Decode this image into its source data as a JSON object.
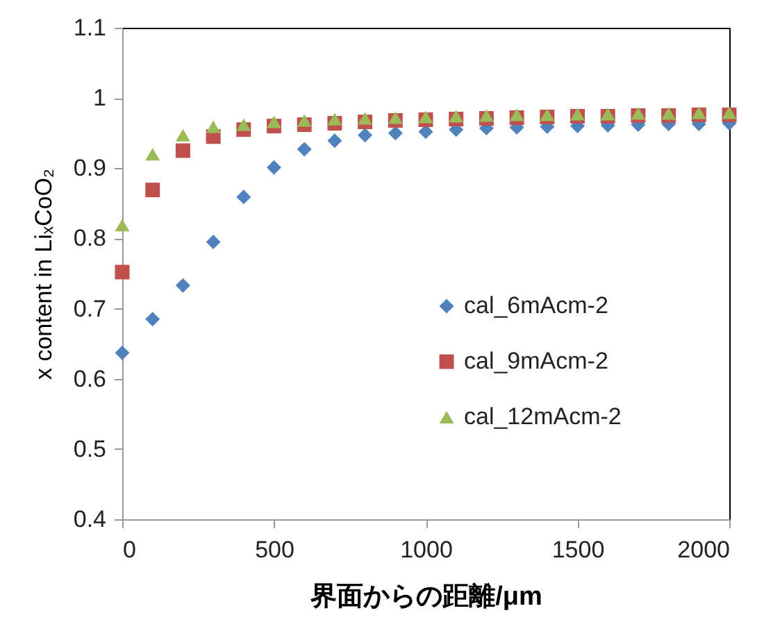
{
  "chart_data": {
    "type": "scatter",
    "xlabel": "界面からの距離/μm",
    "ylabel": "x content in LiₓCoO₂",
    "x": [
      0,
      100,
      200,
      300,
      400,
      500,
      600,
      700,
      800,
      900,
      1000,
      1100,
      1200,
      1300,
      1400,
      1500,
      1600,
      1700,
      1800,
      1900,
      2000
    ],
    "series": [
      {
        "name": "cal_6mAcm-2",
        "color": "#4f81bd",
        "marker": "diamond",
        "values": [
          0.637,
          0.685,
          0.733,
          0.795,
          0.859,
          0.901,
          0.927,
          0.939,
          0.947,
          0.95,
          0.952,
          0.955,
          0.957,
          0.958,
          0.959,
          0.96,
          0.961,
          0.962,
          0.963,
          0.963,
          0.964
        ]
      },
      {
        "name": "cal_9mAcm-2",
        "color": "#c0504d",
        "marker": "square",
        "values": [
          0.752,
          0.869,
          0.925,
          0.945,
          0.955,
          0.96,
          0.962,
          0.964,
          0.966,
          0.968,
          0.969,
          0.97,
          0.971,
          0.972,
          0.973,
          0.974,
          0.974,
          0.975,
          0.975,
          0.976,
          0.976
        ]
      },
      {
        "name": "cal_12mAcm-2",
        "color": "#9bbb59",
        "marker": "triangle",
        "values": [
          0.819,
          0.92,
          0.947,
          0.959,
          0.962,
          0.966,
          0.968,
          0.97,
          0.971,
          0.972,
          0.973,
          0.974,
          0.975,
          0.976,
          0.976,
          0.977,
          0.977,
          0.978,
          0.978,
          0.979,
          0.979
        ]
      }
    ],
    "xlim": [
      0,
      2000
    ],
    "xticks": [
      0,
      500,
      1000,
      1500,
      2000
    ],
    "ylim": [
      0.4,
      1.1
    ],
    "yticks": [
      0.4,
      0.5,
      0.6,
      0.7,
      0.8,
      0.9,
      1,
      1.1
    ],
    "grid": false,
    "legend": "right"
  }
}
